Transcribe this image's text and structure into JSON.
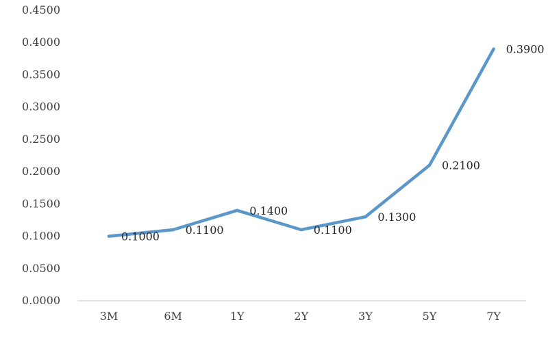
{
  "chart_data": {
    "type": "line",
    "categories": [
      "3M",
      "6M",
      "1Y",
      "2Y",
      "3Y",
      "5Y",
      "7Y"
    ],
    "series": [
      {
        "values": [
          0.1,
          0.11,
          0.14,
          0.11,
          0.13,
          0.21,
          0.39
        ]
      }
    ],
    "data_labels": [
      "0.1000",
      "0.1100",
      "0.1400",
      "0.1100",
      "0.1300",
      "0.2100",
      "0.3900"
    ],
    "y_ticks": [
      0,
      0.05,
      0.1,
      0.15,
      0.2,
      0.25,
      0.3,
      0.35,
      0.4,
      0.45
    ],
    "y_tick_labels": [
      "0.0000",
      "0.0500",
      "0.1000",
      "0.1500",
      "0.2000",
      "0.2500",
      "0.3000",
      "0.3500",
      "0.4000",
      "0.4500"
    ],
    "ylim": [
      0,
      0.45
    ],
    "title": "",
    "xlabel": "",
    "ylabel": "",
    "grid": false,
    "legend": "none",
    "colors": {
      "line": "#5b97c9",
      "axis": "#d9d9d9",
      "text": "#404040"
    }
  }
}
